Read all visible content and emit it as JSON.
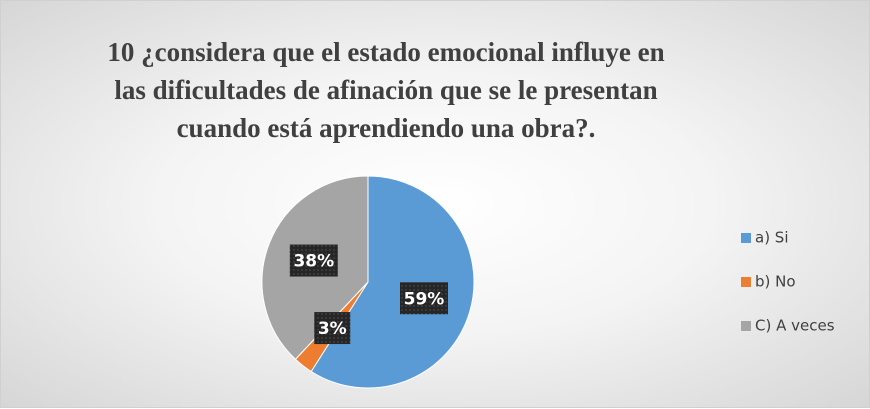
{
  "chart_data": {
    "type": "pie",
    "title": "10  ¿considera que el estado emocional influye en las dificultades de afinación que se le presentan cuando está aprendiendo una obra?.",
    "categories": [
      "a) Si",
      "b) No",
      "C) A veces"
    ],
    "values": [
      59,
      3,
      38
    ],
    "value_labels": [
      "59%",
      "3%",
      "38%"
    ],
    "colors": [
      "#5b9bd5",
      "#ed7d31",
      "#a5a5a5"
    ],
    "legend": "right"
  }
}
